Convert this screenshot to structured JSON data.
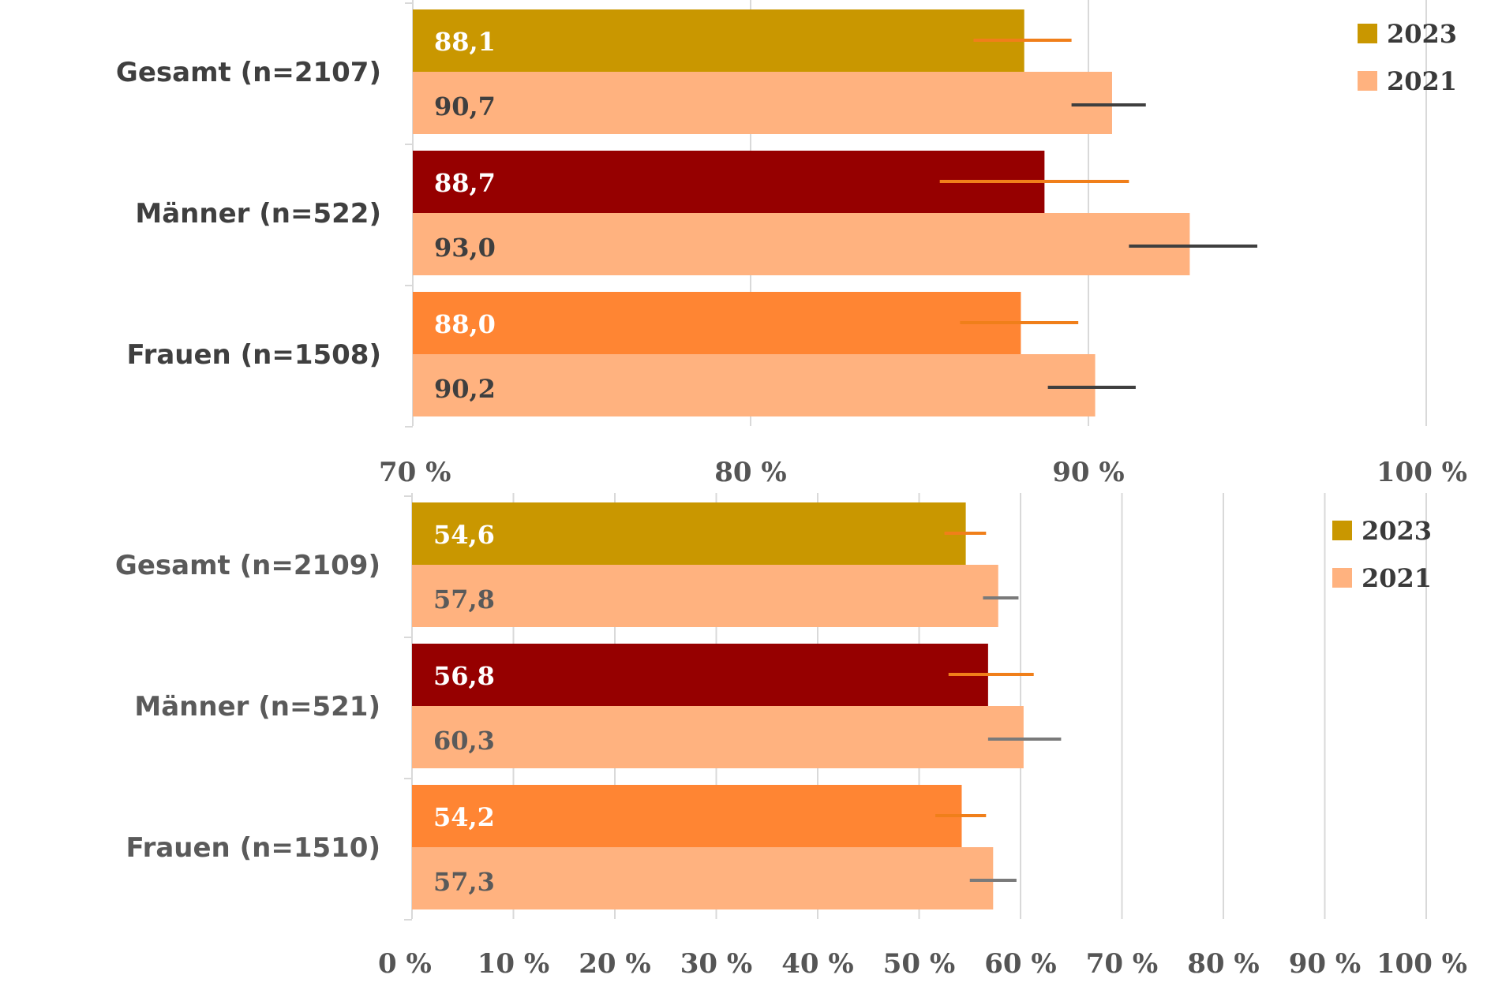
{
  "colors": {
    "gesamt_2023": "#c99700",
    "maenner_2023": "#960000",
    "frauen_2023": "#ff8533",
    "bar_2021": "#ffb27f",
    "errorbar_2023": "#f07f1a",
    "errorbar_2021_top": "#3f3f3f",
    "errorbar_2021_bottom": "#7a7a7a",
    "value_label_2023": "#ffffff",
    "value_label_2021_top": "#3f3f3f",
    "value_label_2021_bottom": "#5a5a5a",
    "category_label_top": "#3f3f3f",
    "category_label_bottom": "#5a5a5a",
    "gridline": "#d9d9d9",
    "legend_2023": "#c99700",
    "legend_2021": "#ffb27f"
  },
  "chart_data": [
    {
      "type": "bar",
      "orientation": "horizontal",
      "categories": [
        "Gesamt (n=2107)",
        "Männer (n=522)",
        "Frauen (n=1508)"
      ],
      "series": [
        {
          "name": "2023",
          "values": [
            88.1,
            88.7,
            88.0
          ],
          "labels": [
            "88,1",
            "88,7",
            "88,0"
          ],
          "error_low": [
            86.6,
            85.6,
            86.2
          ],
          "error_high": [
            89.5,
            91.2,
            89.7
          ]
        },
        {
          "name": "2021",
          "values": [
            90.7,
            93.0,
            90.2
          ],
          "labels": [
            "90,7",
            "93,0",
            "90,2"
          ],
          "error_low": [
            89.5,
            91.2,
            88.8
          ],
          "error_high": [
            91.7,
            95.0,
            91.4
          ]
        }
      ],
      "xlim": [
        70,
        100
      ],
      "xticks": [
        "70 %",
        "80 %",
        "90 %",
        "100 %"
      ],
      "xtick_values": [
        70,
        80,
        90,
        100
      ],
      "legend": [
        "2023",
        "2021"
      ],
      "legend_position": "top-right",
      "grid": true
    },
    {
      "type": "bar",
      "orientation": "horizontal",
      "categories": [
        "Gesamt (n=2109)",
        "Männer (n=521)",
        "Frauen (n=1510)"
      ],
      "series": [
        {
          "name": "2023",
          "values": [
            54.6,
            56.8,
            54.2
          ],
          "labels": [
            "54,6",
            "56,8",
            "54,2"
          ],
          "error_low": [
            52.5,
            52.9,
            51.6
          ],
          "error_high": [
            56.6,
            61.3,
            56.6
          ]
        },
        {
          "name": "2021",
          "values": [
            57.8,
            60.3,
            57.3
          ],
          "labels": [
            "57,8",
            "60,3",
            "57,3"
          ],
          "error_low": [
            56.3,
            56.8,
            55.0
          ],
          "error_high": [
            59.8,
            64.0,
            59.6
          ]
        }
      ],
      "xlim": [
        0,
        100
      ],
      "xticks": [
        "0 %",
        "10 %",
        "20 %",
        "30 %",
        "40 %",
        "50 %",
        "60 %",
        "70 %",
        "80 %",
        "90 %",
        "100 %"
      ],
      "xtick_values": [
        0,
        10,
        20,
        30,
        40,
        50,
        60,
        70,
        80,
        90,
        100
      ],
      "legend": [
        "2023",
        "2021"
      ],
      "legend_position": "top-right",
      "grid": true
    }
  ]
}
